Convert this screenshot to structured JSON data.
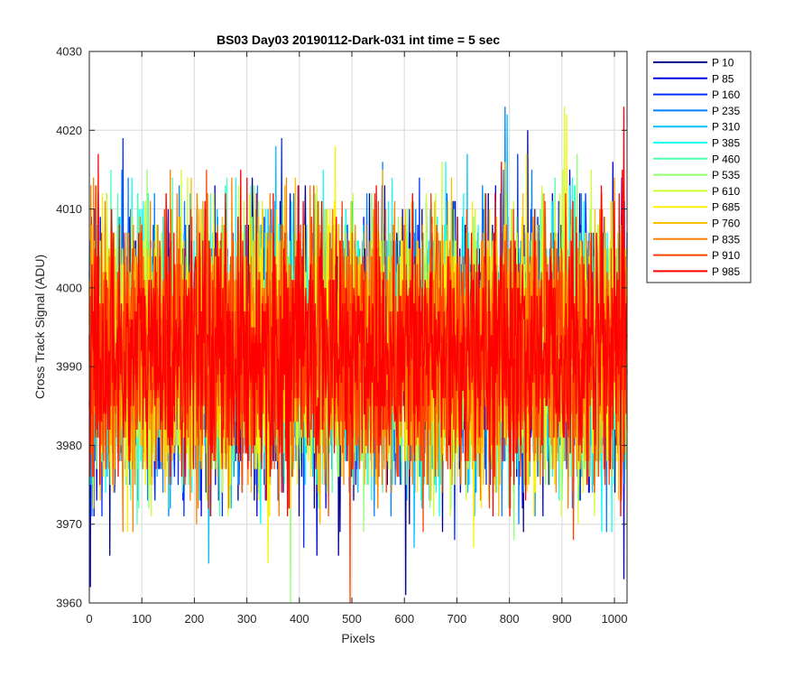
{
  "chart_data": {
    "type": "line",
    "title": "BS03 Day03 20190112-Dark-031 int time = 5 sec",
    "xlabel": "Pixels",
    "ylabel": "Cross Track Signal (ADU)",
    "xlim": [
      0,
      1024
    ],
    "ylim": [
      3960,
      4030
    ],
    "xticks": [
      0,
      100,
      200,
      300,
      400,
      500,
      600,
      700,
      800,
      900,
      1000
    ],
    "yticks": [
      3960,
      3970,
      3980,
      3990,
      4000,
      4010,
      4020,
      4030
    ],
    "grid": true,
    "legend_position": "outside-right-top",
    "noise_model": {
      "mean": 3992,
      "std": 8,
      "min": 3960,
      "max": 4028,
      "n_points": 1024
    },
    "series": [
      {
        "name": "P 10",
        "color": "#00008F"
      },
      {
        "name": "P 85",
        "color": "#0000DF"
      },
      {
        "name": "P 160",
        "color": "#0030FF"
      },
      {
        "name": "P 235",
        "color": "#0080FF"
      },
      {
        "name": "P 310",
        "color": "#00C0FF"
      },
      {
        "name": "P 385",
        "color": "#10FFEF"
      },
      {
        "name": "P 460",
        "color": "#50FFAF"
      },
      {
        "name": "P 535",
        "color": "#90FF6F"
      },
      {
        "name": "P 610",
        "color": "#CFFF30"
      },
      {
        "name": "P 685",
        "color": "#FFEF00"
      },
      {
        "name": "P 760",
        "color": "#FFBF00"
      },
      {
        "name": "P 835",
        "color": "#FF8000"
      },
      {
        "name": "P 910",
        "color": "#FF4000"
      },
      {
        "name": "P 985",
        "color": "#FF0000"
      }
    ]
  }
}
